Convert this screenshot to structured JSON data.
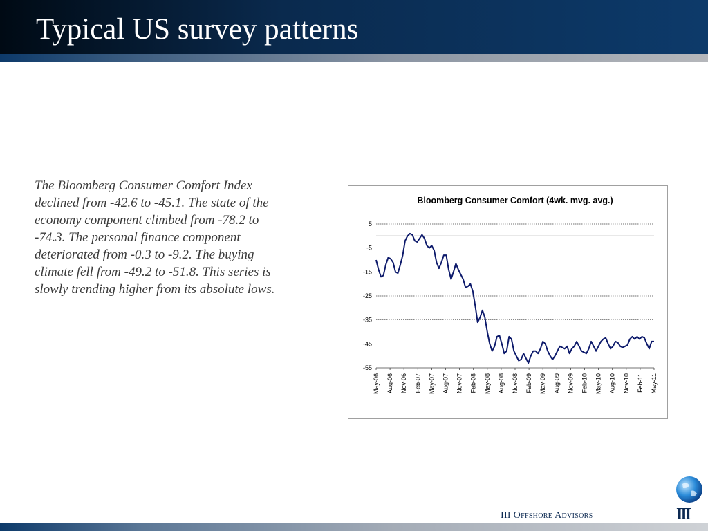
{
  "slide": {
    "title": "Typical US survey patterns",
    "body": "The Bloomberg Consumer Comfort Index declined from -42.6 to -45.1. The state of the economy component climbed from -78.2 to -74.3. The personal finance component deteriorated from -0.3 to -9.2. The buying climate fell from -49.2 to -51.8. This series is slowly trending higher from its absolute lows."
  },
  "footer": {
    "logo_text": "III Offshore Advisors",
    "mark_text": "III"
  },
  "icons": {
    "globe": "globe-icon"
  },
  "colors": {
    "header": "#0a2a4e",
    "line": "#0d1a6b",
    "accent": "#0d2a52"
  },
  "chart_data": {
    "type": "line",
    "title": "Bloomberg Consumer Comfort (4wk. mvg. avg.)",
    "ylim": [
      -55,
      5
    ],
    "yticks": [
      5,
      -5,
      -15,
      -25,
      -35,
      -45,
      -55
    ],
    "xlabel": "",
    "ylabel": "",
    "grid": true,
    "x_range": [
      "May-06",
      "May-11"
    ],
    "xticks": [
      "May-06",
      "Aug-06",
      "Nov-06",
      "Feb-07",
      "May-07",
      "Aug-07",
      "Nov-07",
      "Feb-08",
      "May-08",
      "Aug-08",
      "Nov-08",
      "Feb-09",
      "May-09",
      "Aug-09",
      "Nov-09",
      "Feb-10",
      "May-10",
      "Aug-10",
      "Nov-10",
      "Feb-11",
      "May-11"
    ],
    "series": [
      {
        "values": [
          -10,
          -14,
          -17,
          -16.5,
          -12,
          -9,
          -9.5,
          -11,
          -15,
          -15.5,
          -12,
          -8,
          -2,
          0,
          1,
          0.5,
          -2,
          -2.5,
          -1,
          0.5,
          -1,
          -4,
          -5,
          -4,
          -6,
          -11,
          -13.5,
          -11,
          -8,
          -8,
          -14,
          -18,
          -15,
          -11.5,
          -14,
          -16,
          -18,
          -21.5,
          -21,
          -20,
          -23,
          -29,
          -36,
          -34,
          -31,
          -34,
          -40,
          -45,
          -48,
          -46,
          -42,
          -41.5,
          -45,
          -49,
          -48,
          -42,
          -43,
          -48,
          -50,
          -52,
          -51.5,
          -49,
          -51,
          -53,
          -50,
          -48,
          -48,
          -49,
          -47,
          -44,
          -45,
          -48,
          -50,
          -51.5,
          -50,
          -48,
          -46,
          -46.5,
          -47,
          -46,
          -49,
          -47,
          -46,
          -44,
          -46,
          -48,
          -48.5,
          -49,
          -47,
          -44,
          -46,
          -48,
          -46,
          -44,
          -43,
          -42.5,
          -45,
          -47,
          -46,
          -44,
          -44.5,
          -46,
          -46.5,
          -46,
          -45.5,
          -43,
          -42,
          -43,
          -42,
          -43,
          -42,
          -42.5,
          -45,
          -47,
          -44,
          -44
        ]
      }
    ]
  }
}
